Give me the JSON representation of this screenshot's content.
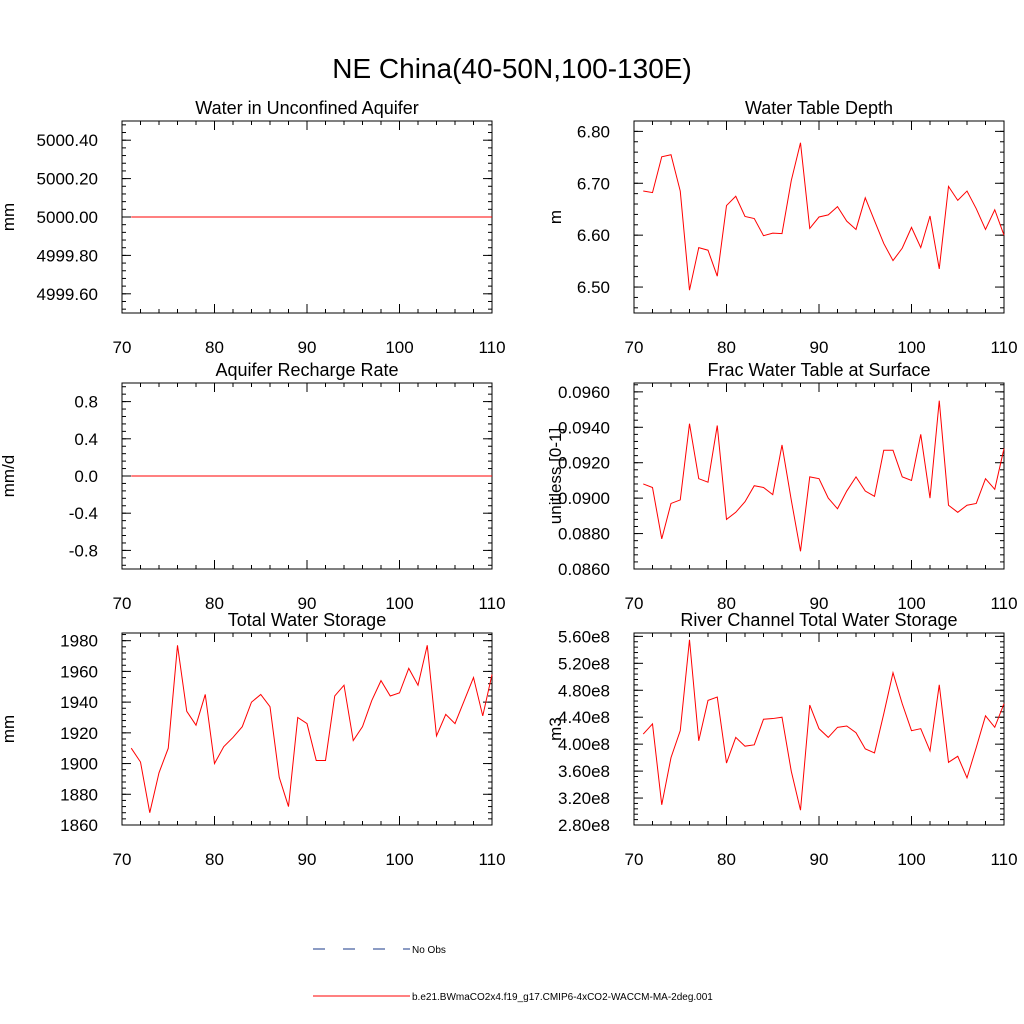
{
  "figure": {
    "title": "NE China(40-50N,100-130E)",
    "series_color": "#ff0000",
    "obs_color": "#1a3a8a"
  },
  "legend": {
    "items": [
      {
        "label": "No Obs",
        "style": "dashed",
        "color": "#1a3a8a"
      },
      {
        "label": "b.e21.BWmaCO2x4.f19_g17.CMIP6-4xCO2-WACCM-MA-2deg.001",
        "style": "solid",
        "color": "#ff0000"
      }
    ]
  },
  "chart_data": [
    {
      "type": "line",
      "title": "Water in Unconfined Aquifer",
      "ylabel": "mm",
      "xlim": [
        70,
        110
      ],
      "ylim": [
        4999.5,
        5000.5
      ],
      "xticks": [
        70,
        80,
        90,
        100,
        110
      ],
      "yticks": [
        4999.6,
        4999.8,
        5000.0,
        5000.2,
        5000.4
      ],
      "ytick_labels": [
        "4999.60",
        "4999.80",
        "5000.00",
        "5000.20",
        "5000.40"
      ],
      "x": [
        71,
        110
      ],
      "series": [
        {
          "name": "b.e21.BWmaCO2x4.f19_g17.CMIP6-4xCO2-WACCM-MA-2deg.001",
          "values": [
            5000.0,
            5000.0
          ]
        }
      ]
    },
    {
      "type": "line",
      "title": "Water Table Depth",
      "ylabel": "m",
      "xlim": [
        70,
        110
      ],
      "ylim": [
        6.45,
        6.82
      ],
      "xticks": [
        70,
        80,
        90,
        100,
        110
      ],
      "yticks": [
        6.5,
        6.6,
        6.7,
        6.8
      ],
      "ytick_labels": [
        "6.50",
        "6.60",
        "6.70",
        "6.80"
      ],
      "x": [
        71,
        72,
        73,
        74,
        75,
        76,
        77,
        78,
        79,
        80,
        81,
        82,
        83,
        84,
        85,
        86,
        87,
        88,
        89,
        90,
        91,
        92,
        93,
        94,
        95,
        96,
        97,
        98,
        99,
        100,
        101,
        102,
        103,
        104,
        105,
        106,
        107,
        108,
        109,
        110
      ],
      "series": [
        {
          "name": "b.e21.BWmaCO2x4.f19_g17.CMIP6-4xCO2-WACCM-MA-2deg.001",
          "values": [
            6.685,
            6.682,
            6.751,
            6.755,
            6.685,
            6.494,
            6.576,
            6.571,
            6.521,
            6.657,
            6.675,
            6.636,
            6.632,
            6.599,
            6.604,
            6.603,
            6.705,
            6.778,
            6.613,
            6.635,
            6.639,
            6.655,
            6.627,
            6.611,
            6.672,
            6.628,
            6.584,
            6.551,
            6.575,
            6.615,
            6.576,
            6.637,
            6.535,
            6.694,
            6.667,
            6.685,
            6.651,
            6.611,
            6.649,
            6.6
          ]
        }
      ]
    },
    {
      "type": "line",
      "title": "Aquifer Recharge Rate",
      "ylabel": "mm/d",
      "xlim": [
        70,
        110
      ],
      "ylim": [
        -1.0,
        1.0
      ],
      "xticks": [
        70,
        80,
        90,
        100,
        110
      ],
      "yticks": [
        -0.8,
        -0.4,
        0.0,
        0.4,
        0.8
      ],
      "ytick_labels": [
        "-0.8",
        "-0.4",
        "0.0",
        "0.4",
        "0.8"
      ],
      "x": [
        71,
        110
      ],
      "series": [
        {
          "name": "b.e21.BWmaCO2x4.f19_g17.CMIP6-4xCO2-WACCM-MA-2deg.001",
          "values": [
            0.0,
            0.0
          ]
        }
      ]
    },
    {
      "type": "line",
      "title": "Frac Water Table at Surface",
      "ylabel": "unitless [0-1]",
      "xlim": [
        70,
        110
      ],
      "ylim": [
        0.086,
        0.0965
      ],
      "xticks": [
        70,
        80,
        90,
        100,
        110
      ],
      "yticks": [
        0.086,
        0.088,
        0.09,
        0.092,
        0.094,
        0.096
      ],
      "ytick_labels": [
        "0.0860",
        "0.0880",
        "0.0900",
        "0.0920",
        "0.0940",
        "0.0960"
      ],
      "x": [
        71,
        72,
        73,
        74,
        75,
        76,
        77,
        78,
        79,
        80,
        81,
        82,
        83,
        84,
        85,
        86,
        87,
        88,
        89,
        90,
        91,
        92,
        93,
        94,
        95,
        96,
        97,
        98,
        99,
        100,
        101,
        102,
        103,
        104,
        105,
        106,
        107,
        108,
        109,
        110
      ],
      "series": [
        {
          "name": "b.e21.BWmaCO2x4.f19_g17.CMIP6-4xCO2-WACCM-MA-2deg.001",
          "values": [
            0.0908,
            0.0906,
            0.0877,
            0.0897,
            0.0899,
            0.0942,
            0.0911,
            0.0909,
            0.0941,
            0.0888,
            0.0892,
            0.0898,
            0.0907,
            0.0906,
            0.0902,
            0.093,
            0.0899,
            0.087,
            0.0912,
            0.0911,
            0.09,
            0.0894,
            0.0904,
            0.0912,
            0.0904,
            0.0901,
            0.0927,
            0.0927,
            0.0912,
            0.091,
            0.0936,
            0.09,
            0.0955,
            0.0896,
            0.0892,
            0.0896,
            0.0897,
            0.0911,
            0.0905,
            0.0928
          ]
        }
      ]
    },
    {
      "type": "line",
      "title": "Total Water Storage",
      "ylabel": "mm",
      "xlim": [
        70,
        110
      ],
      "ylim": [
        1860,
        1985
      ],
      "xticks": [
        70,
        80,
        90,
        100,
        110
      ],
      "yticks": [
        1860,
        1880,
        1900,
        1920,
        1940,
        1960,
        1980
      ],
      "ytick_labels": [
        "1860",
        "1880",
        "1900",
        "1920",
        "1940",
        "1960",
        "1980"
      ],
      "x": [
        71,
        72,
        73,
        74,
        75,
        76,
        77,
        78,
        79,
        80,
        81,
        82,
        83,
        84,
        85,
        86,
        87,
        88,
        89,
        90,
        91,
        92,
        93,
        94,
        95,
        96,
        97,
        98,
        99,
        100,
        101,
        102,
        103,
        104,
        105,
        106,
        107,
        108,
        109,
        110
      ],
      "series": [
        {
          "name": "b.e21.BWmaCO2x4.f19_g17.CMIP6-4xCO2-WACCM-MA-2deg.001",
          "values": [
            1910,
            1901,
            1868,
            1894,
            1910,
            1977,
            1934,
            1925,
            1945,
            1900,
            1911,
            1917,
            1924,
            1940,
            1945,
            1937,
            1891,
            1872,
            1930,
            1926,
            1902,
            1902,
            1944,
            1951,
            1915,
            1924,
            1941,
            1954,
            1944,
            1946,
            1962,
            1951,
            1977,
            1918,
            1932,
            1926,
            1941,
            1956,
            1931,
            1958
          ]
        }
      ]
    },
    {
      "type": "line",
      "title": "River Channel Total Water Storage",
      "ylabel": "m3",
      "xlim": [
        70,
        110
      ],
      "ylim": [
        280000000.0,
        565000000.0
      ],
      "xticks": [
        70,
        80,
        90,
        100,
        110
      ],
      "yticks": [
        280000000.0,
        320000000.0,
        360000000.0,
        400000000.0,
        440000000.0,
        480000000.0,
        520000000.0,
        560000000.0
      ],
      "ytick_labels": [
        "2.80e8",
        "3.20e8",
        "3.60e8",
        "4.00e8",
        "4.40e8",
        "4.80e8",
        "5.20e8",
        "5.60e8"
      ],
      "x": [
        71,
        72,
        73,
        74,
        75,
        76,
        77,
        78,
        79,
        80,
        81,
        82,
        83,
        84,
        85,
        86,
        87,
        88,
        89,
        90,
        91,
        92,
        93,
        94,
        95,
        96,
        97,
        98,
        99,
        100,
        101,
        102,
        103,
        104,
        105,
        106,
        107,
        108,
        109,
        110
      ],
      "series": [
        {
          "name": "b.e21.BWmaCO2x4.f19_g17.CMIP6-4xCO2-WACCM-MA-2deg.001",
          "values": [
            415000000.0,
            430000000.0,
            310000000.0,
            380000000.0,
            420000000.0,
            555000000.0,
            405000000.0,
            465000000.0,
            470000000.0,
            372000000.0,
            410000000.0,
            397000000.0,
            399000000.0,
            437000000.0,
            438000000.0,
            440000000.0,
            360000000.0,
            302000000.0,
            458000000.0,
            423000000.0,
            410000000.0,
            425000000.0,
            427000000.0,
            417000000.0,
            393000000.0,
            387000000.0,
            445000000.0,
            506000000.0,
            460000000.0,
            420000000.0,
            423000000.0,
            390000000.0,
            488000000.0,
            373000000.0,
            382000000.0,
            350000000.0,
            395000000.0,
            442000000.0,
            425000000.0,
            460000000.0
          ]
        }
      ]
    }
  ]
}
